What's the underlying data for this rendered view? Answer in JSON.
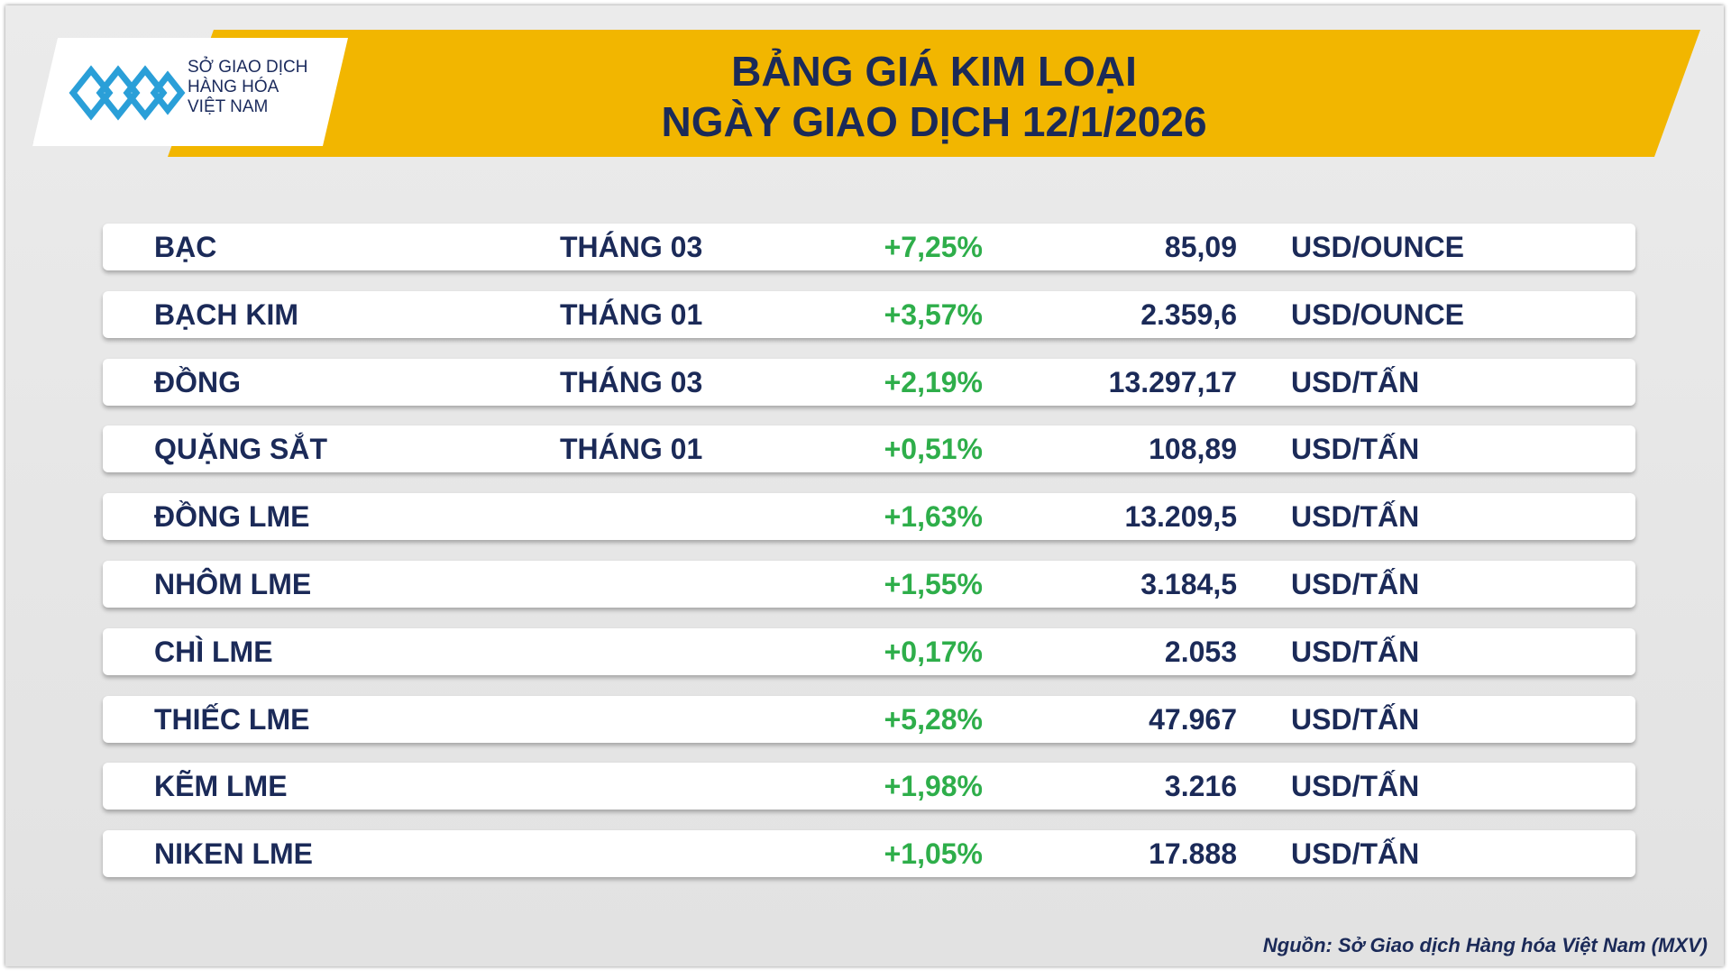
{
  "header": {
    "logo": [
      "SỞ GIAO DỊCH",
      "HÀNG HÓA",
      "VIỆT NAM"
    ],
    "title": [
      "BẢNG GIÁ KIM LOẠI",
      "NGÀY GIAO DỊCH 12/1/2026"
    ]
  },
  "table": {
    "rows": [
      {
        "name": "BẠC",
        "month": "THÁNG 03",
        "change": "+7,25%",
        "price": "85,09",
        "unit": "USD/OUNCE"
      },
      {
        "name": "BẠCH KIM",
        "month": "THÁNG 01",
        "change": "+3,57%",
        "price": "2.359,6",
        "unit": "USD/OUNCE"
      },
      {
        "name": "ĐỒNG",
        "month": "THÁNG 03",
        "change": "+2,19%",
        "price": "13.297,17",
        "unit": "USD/TẤN"
      },
      {
        "name": "QUẶNG SẮT",
        "month": "THÁNG 01",
        "change": "+0,51%",
        "price": "108,89",
        "unit": "USD/TẤN"
      },
      {
        "name": "ĐỒNG LME",
        "change": "+1,63%",
        "price": "13.209,5",
        "unit": "USD/TẤN"
      },
      {
        "name": "NHÔM LME",
        "change": "+1,55%",
        "price": "3.184,5",
        "unit": "USD/TẤN"
      },
      {
        "name": "CHÌ LME",
        "change": "+0,17%",
        "price": "2.053",
        "unit": "USD/TẤN"
      },
      {
        "name": "THIẾC LME",
        "change": "+5,28%",
        "price": "47.967",
        "unit": "USD/TẤN"
      },
      {
        "name": "KẼM LME",
        "change": "+1,98%",
        "price": "3.216",
        "unit": "USD/TẤN"
      },
      {
        "name": "NIKEN LME",
        "change": "+1,05%",
        "price": "17.888",
        "unit": "USD/TẤN"
      }
    ]
  },
  "footer": {
    "source": "Nguồn: Sở Giao dịch Hàng hóa Việt Nam (MXV)"
  }
}
